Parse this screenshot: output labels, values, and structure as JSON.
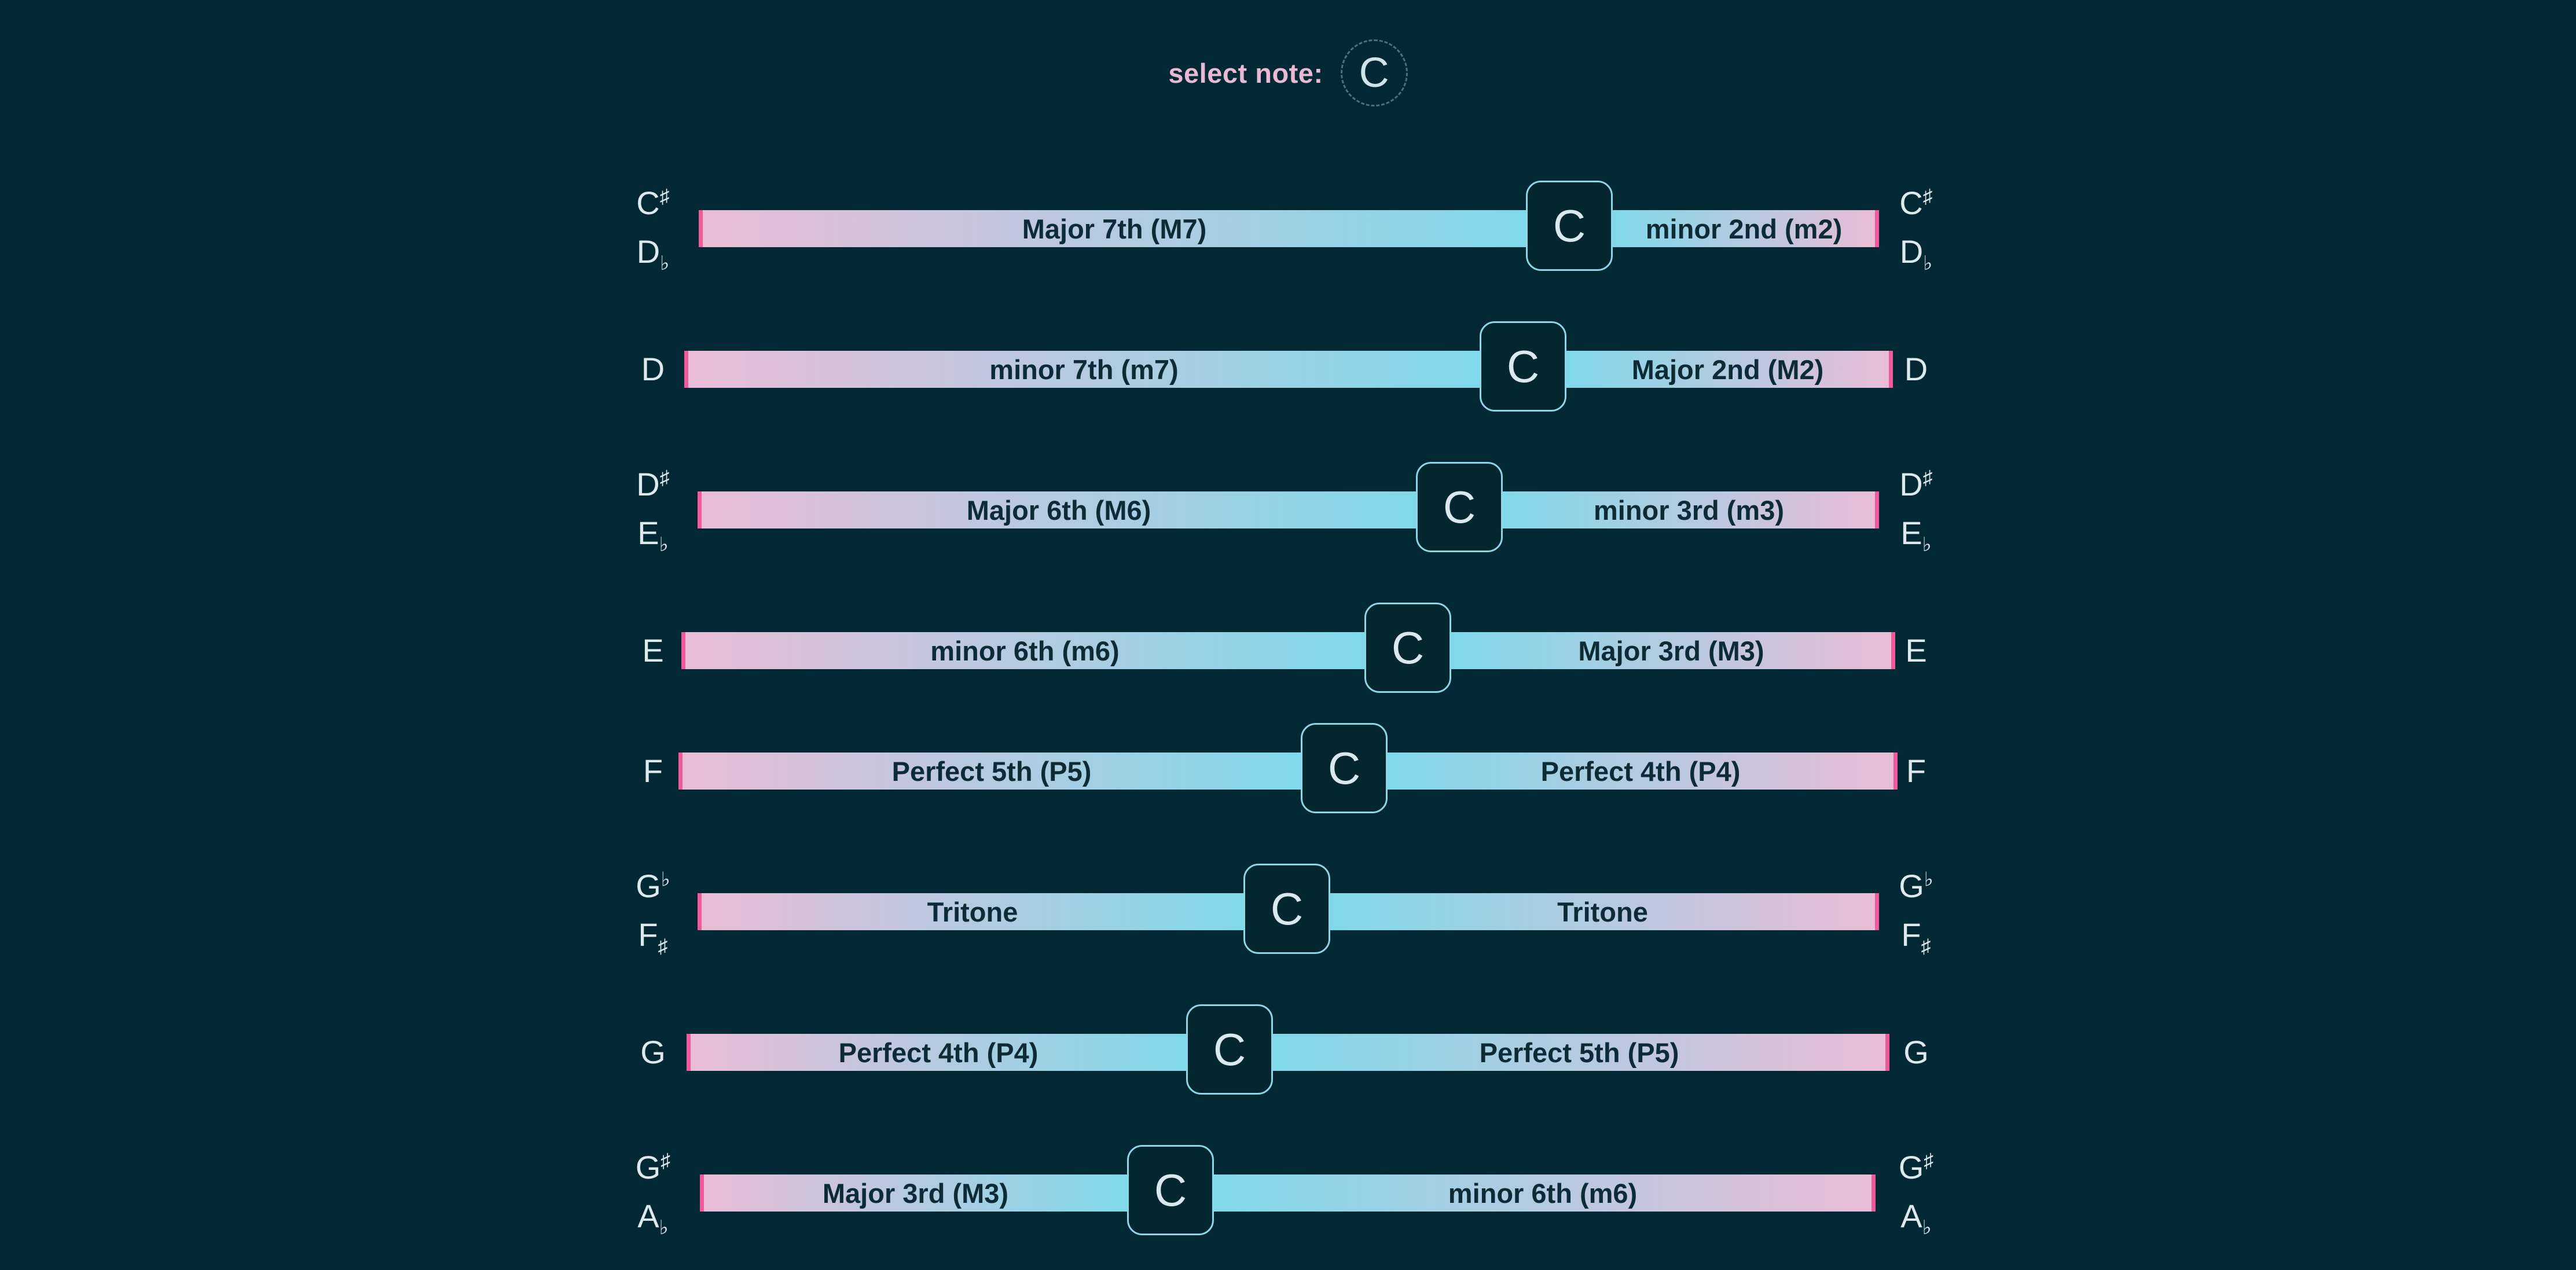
{
  "header": {
    "label": "select note:",
    "selected_note": "C"
  },
  "rows": [
    {
      "note_top": "C",
      "note_top_acc": "♯",
      "note_bottom": "D",
      "note_bottom_acc": "♭",
      "left_interval": "Major 7th (M7)",
      "right_interval": "minor 2nd (m2)",
      "root": "C"
    },
    {
      "note_top": "D",
      "note_top_acc": "",
      "note_bottom": "",
      "note_bottom_acc": "",
      "left_interval": "minor 7th (m7)",
      "right_interval": "Major 2nd (M2)",
      "root": "C"
    },
    {
      "note_top": "D",
      "note_top_acc": "♯",
      "note_bottom": "E",
      "note_bottom_acc": "♭",
      "left_interval": "Major 6th (M6)",
      "right_interval": "minor 3rd (m3)",
      "root": "C"
    },
    {
      "note_top": "E",
      "note_top_acc": "",
      "note_bottom": "",
      "note_bottom_acc": "",
      "left_interval": "minor 6th (m6)",
      "right_interval": "Major 3rd (M3)",
      "root": "C"
    },
    {
      "note_top": "F",
      "note_top_acc": "",
      "note_bottom": "",
      "note_bottom_acc": "",
      "left_interval": "Perfect 5th (P5)",
      "right_interval": "Perfect 4th (P4)",
      "root": "C"
    },
    {
      "note_top": "G",
      "note_top_acc": "♭",
      "note_bottom": "F",
      "note_bottom_acc": "♯",
      "left_interval": "Tritone",
      "right_interval": "Tritone",
      "root": "C"
    },
    {
      "note_top": "G",
      "note_top_acc": "",
      "note_bottom": "",
      "note_bottom_acc": "",
      "left_interval": "Perfect 4th (P4)",
      "right_interval": "Perfect 5th (P5)",
      "root": "C"
    },
    {
      "note_top": "G",
      "note_top_acc": "♯",
      "note_bottom": "A",
      "note_bottom_acc": "♭",
      "left_interval": "Major 3rd (M3)",
      "right_interval": "minor 6th (m6)",
      "root": "C"
    }
  ],
  "colors": {
    "background": "#022833",
    "label": "#e7b9d4",
    "bar_pink": "#e9bcd6",
    "bar_cyan": "#7fd9ea",
    "bar_edge": "#f05a9a",
    "root_border": "#8ed6e6"
  }
}
